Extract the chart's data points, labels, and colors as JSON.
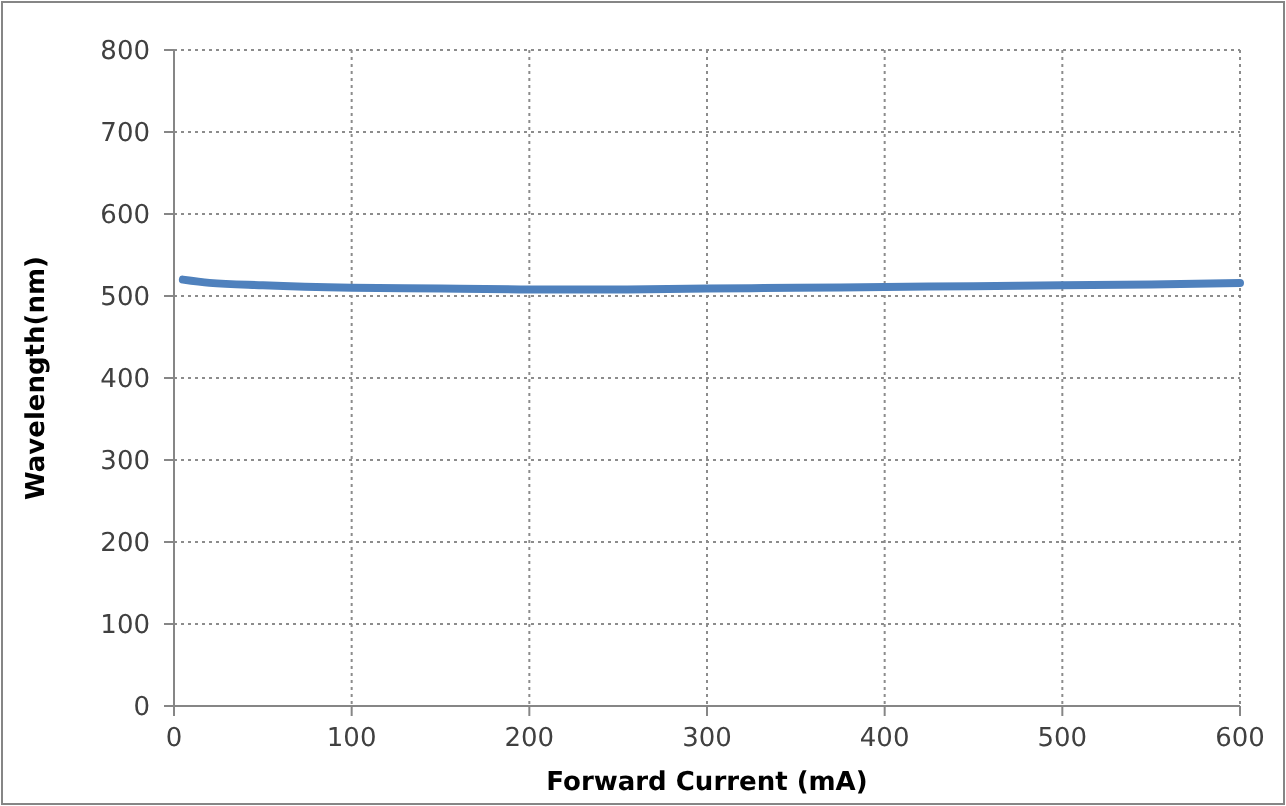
{
  "chart_data": {
    "type": "line",
    "xlabel": "Forward Current  (mA)",
    "ylabel": "Wavelength(nm)",
    "x": [
      5,
      20,
      50,
      100,
      150,
      200,
      250,
      300,
      350,
      400,
      450,
      500,
      550,
      600
    ],
    "series": [
      {
        "color": "#4f81bd",
        "values": [
          520,
          516,
          513,
          510,
          509,
          508,
          508,
          509,
          510,
          511,
          512,
          513,
          514,
          516
        ]
      }
    ],
    "xlim": [
      0,
      600
    ],
    "xticks": [
      0,
      100,
      200,
      300,
      400,
      500,
      600
    ],
    "ylim": [
      0,
      800
    ],
    "yticks": [
      0,
      100,
      200,
      300,
      400,
      500,
      600,
      700,
      800
    ],
    "grid": true,
    "marker": "none",
    "line_style": "solid"
  }
}
